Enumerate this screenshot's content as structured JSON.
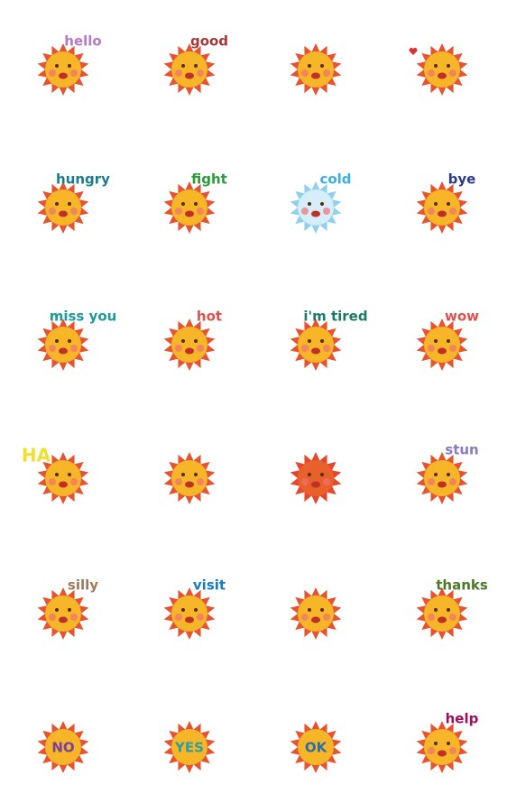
{
  "stickers": [
    {
      "label": "hello",
      "label_color": "#b57ac8",
      "ray_color": "#e8532f",
      "face_color": "#f7b528"
    },
    {
      "label": "good",
      "label_color": "#a23a3a",
      "ray_color": "#e8532f",
      "face_color": "#f7b528"
    },
    {
      "ray_color": "#e8532f",
      "face_color": "#f7b528"
    },
    {
      "ray_color": "#e8532f",
      "face_color": "#f7b528"
    },
    {
      "label": "hungry",
      "label_color": "#1a7d8a",
      "ray_color": "#e8532f",
      "face_color": "#f7b528"
    },
    {
      "label": "fight",
      "label_color": "#2a9a3a",
      "ray_color": "#e8532f",
      "face_color": "#f7b528"
    },
    {
      "label": "cold",
      "label_color": "#3ab0e0",
      "ray_color": "#8fd0f0",
      "face_color": "#d6eefa"
    },
    {
      "label": "bye",
      "label_color": "#2a3a8a",
      "ray_color": "#e8532f",
      "face_color": "#f7b528"
    },
    {
      "label": "miss you",
      "label_color": "#1a9a9a",
      "ray_color": "#e8532f",
      "face_color": "#f7b528"
    },
    {
      "label": "hot",
      "label_color": "#e05050",
      "ray_color": "#e8532f",
      "face_color": "#f7b528"
    },
    {
      "label": "i'm tired",
      "label_color": "#1a7a6a",
      "ray_color": "#e8532f",
      "face_color": "#f7b528"
    },
    {
      "label": "wow",
      "label_color": "#e05050",
      "ray_color": "#e8532f",
      "face_color": "#f7b528"
    },
    {
      "label": "HA",
      "label_color": "#f0e030",
      "ray_color": "#e8532f",
      "face_color": "#f7b528"
    },
    {
      "ray_color": "#e8532f",
      "face_color": "#f7b528"
    },
    {
      "ray_color": "#e8452a",
      "face_color": "#e8602a"
    },
    {
      "label": "stun",
      "label_color": "#8a7ac0",
      "ray_color": "#e8532f",
      "face_color": "#f7b528"
    },
    {
      "label": "silly",
      "label_color": "#a0785a",
      "ray_color": "#e8532f",
      "face_color": "#f7b528"
    },
    {
      "label": "visit",
      "label_color": "#1a7ac0",
      "ray_color": "#e8532f",
      "face_color": "#f7b528"
    },
    {
      "ray_color": "#e8532f",
      "face_color": "#f7b528"
    },
    {
      "label": "thanks",
      "label_color": "#4a7a2a",
      "ray_color": "#e8532f",
      "face_color": "#f7b528"
    },
    {
      "face_text": "NO",
      "face_text_color": "#7b3fa0",
      "ray_color": "#e8532f",
      "face_color": "#f7b528"
    },
    {
      "face_text": "YES",
      "face_text_color": "#2aa0a0",
      "ray_color": "#e8532f",
      "face_color": "#f7b528"
    },
    {
      "face_text": "OK",
      "face_text_color": "#2a6fa8",
      "ray_color": "#e8532f",
      "face_color": "#f7b528"
    },
    {
      "label": "help",
      "label_color": "#a0105a",
      "ray_color": "#e8532f",
      "face_color": "#f7b528"
    }
  ]
}
